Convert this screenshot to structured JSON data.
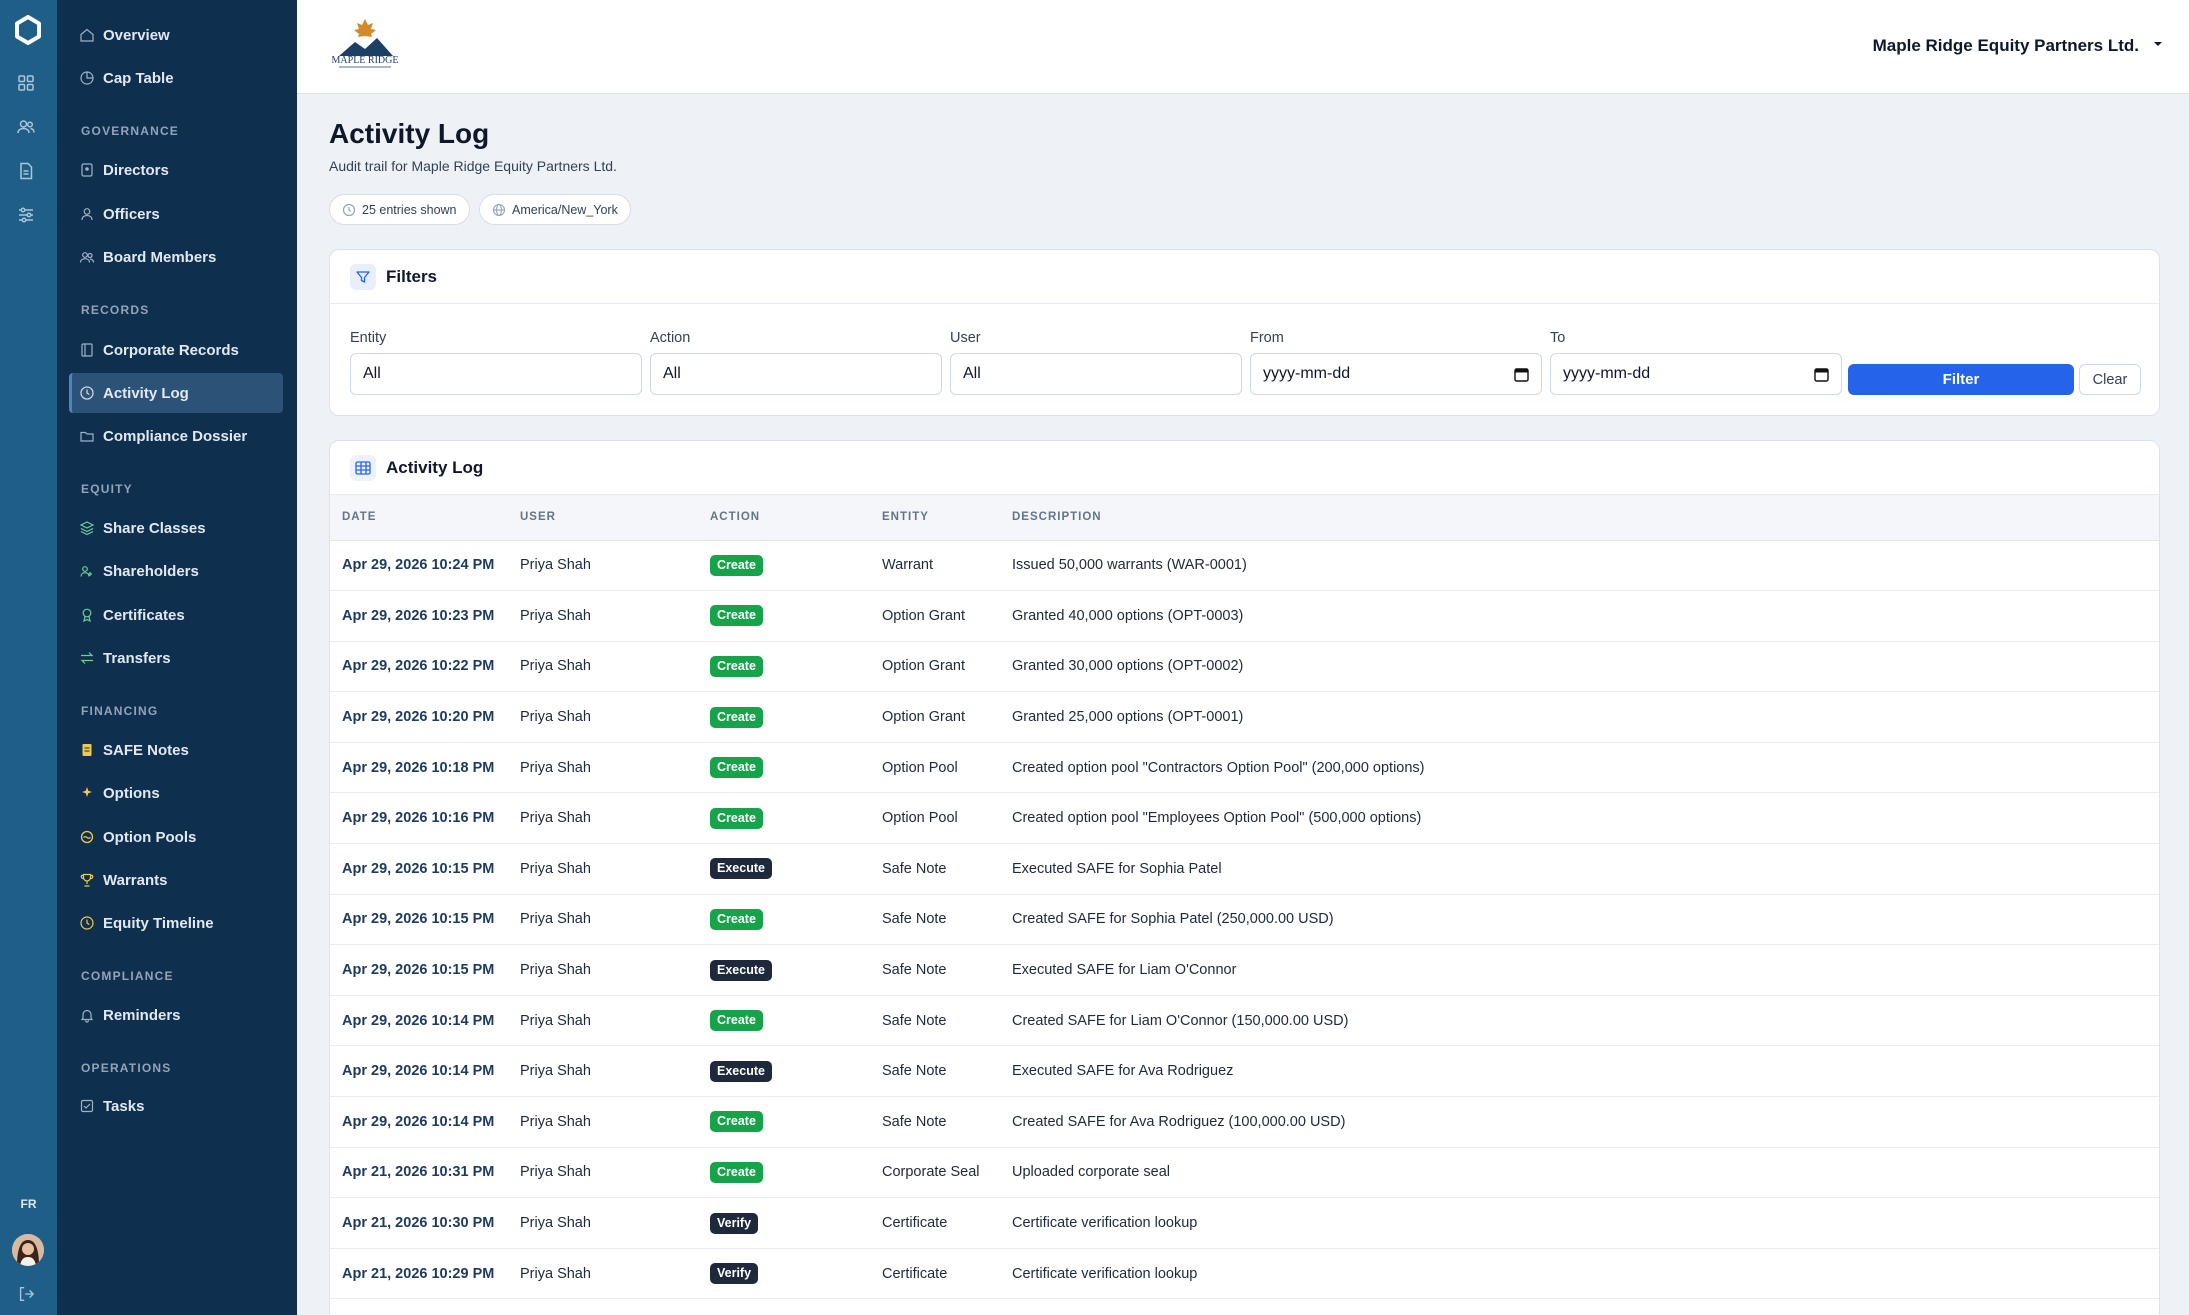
{
  "sidebar": {
    "groups": [
      {
        "heading": "",
        "items": [
          {
            "label": "Overview",
            "icon": "home-icon"
          },
          {
            "label": "Cap Table",
            "icon": "pie-icon"
          }
        ]
      },
      {
        "heading": "GOVERNANCE",
        "items": [
          {
            "label": "Directors",
            "icon": "id-badge-icon"
          },
          {
            "label": "Officers",
            "icon": "user-icon"
          },
          {
            "label": "Board Members",
            "icon": "users-icon"
          }
        ]
      },
      {
        "heading": "RECORDS",
        "items": [
          {
            "label": "Corporate Records",
            "icon": "book-icon"
          },
          {
            "label": "Activity Log",
            "icon": "clock-icon",
            "active": true
          },
          {
            "label": "Compliance Dossier",
            "icon": "folder-icon"
          }
        ]
      },
      {
        "heading": "EQUITY",
        "items": [
          {
            "label": "Share Classes",
            "icon": "layers-icon"
          },
          {
            "label": "Shareholders",
            "icon": "shareholders-icon"
          },
          {
            "label": "Certificates",
            "icon": "award-icon"
          },
          {
            "label": "Transfers",
            "icon": "transfer-icon"
          }
        ]
      },
      {
        "heading": "FINANCING",
        "items": [
          {
            "label": "SAFE Notes",
            "icon": "note-icon"
          },
          {
            "label": "Options",
            "icon": "sparkle-icon"
          },
          {
            "label": "Option Pools",
            "icon": "pool-icon"
          },
          {
            "label": "Warrants",
            "icon": "trophy-icon"
          },
          {
            "label": "Equity Timeline",
            "icon": "timeline-icon"
          }
        ]
      },
      {
        "heading": "COMPLIANCE",
        "items": [
          {
            "label": "Reminders",
            "icon": "bell-icon"
          }
        ]
      },
      {
        "heading": "OPERATIONS",
        "items": [
          {
            "label": "Tasks",
            "icon": "checkbox-icon"
          }
        ]
      }
    ],
    "language": "FR"
  },
  "header": {
    "company_name": "Maple Ridge Equity Partners Ltd.",
    "logo_text": "MAPLE RIDGE"
  },
  "page": {
    "title": "Activity Log",
    "subtitle": "Audit trail for Maple Ridge Equity Partners Ltd.",
    "entries_chip": "25 entries shown",
    "timezone_chip": "America/New_York"
  },
  "filters": {
    "title": "Filters",
    "entity_label": "Entity",
    "entity_value": "All",
    "action_label": "Action",
    "action_value": "All",
    "user_label": "User",
    "user_value": "All",
    "from_label": "From",
    "from_placeholder": "yyyy-mm-dd",
    "to_label": "To",
    "to_placeholder": "yyyy-mm-dd",
    "filter_button": "Filter",
    "clear_button": "Clear"
  },
  "log": {
    "title": "Activity Log",
    "columns": [
      "DATE",
      "USER",
      "ACTION",
      "ENTITY",
      "DESCRIPTION"
    ],
    "rows": [
      {
        "date": "Apr 29, 2026 10:24 PM",
        "user": "Priya Shah",
        "action": "Create",
        "entity": "Warrant",
        "description": "Issued 50,000 warrants (WAR-0001)"
      },
      {
        "date": "Apr 29, 2026 10:23 PM",
        "user": "Priya Shah",
        "action": "Create",
        "entity": "Option Grant",
        "description": "Granted 40,000 options (OPT-0003)"
      },
      {
        "date": "Apr 29, 2026 10:22 PM",
        "user": "Priya Shah",
        "action": "Create",
        "entity": "Option Grant",
        "description": "Granted 30,000 options (OPT-0002)"
      },
      {
        "date": "Apr 29, 2026 10:20 PM",
        "user": "Priya Shah",
        "action": "Create",
        "entity": "Option Grant",
        "description": "Granted 25,000 options (OPT-0001)"
      },
      {
        "date": "Apr 29, 2026 10:18 PM",
        "user": "Priya Shah",
        "action": "Create",
        "entity": "Option Pool",
        "description": "Created option pool \"Contractors Option Pool\" (200,000 options)"
      },
      {
        "date": "Apr 29, 2026 10:16 PM",
        "user": "Priya Shah",
        "action": "Create",
        "entity": "Option Pool",
        "description": "Created option pool \"Employees Option Pool\" (500,000 options)"
      },
      {
        "date": "Apr 29, 2026 10:15 PM",
        "user": "Priya Shah",
        "action": "Execute",
        "entity": "Safe Note",
        "description": "Executed SAFE for Sophia Patel"
      },
      {
        "date": "Apr 29, 2026 10:15 PM",
        "user": "Priya Shah",
        "action": "Create",
        "entity": "Safe Note",
        "description": "Created SAFE for Sophia Patel (250,000.00 USD)"
      },
      {
        "date": "Apr 29, 2026 10:15 PM",
        "user": "Priya Shah",
        "action": "Execute",
        "entity": "Safe Note",
        "description": "Executed SAFE for Liam O'Connor"
      },
      {
        "date": "Apr 29, 2026 10:14 PM",
        "user": "Priya Shah",
        "action": "Create",
        "entity": "Safe Note",
        "description": "Created SAFE for Liam O'Connor (150,000.00 USD)"
      },
      {
        "date": "Apr 29, 2026 10:14 PM",
        "user": "Priya Shah",
        "action": "Execute",
        "entity": "Safe Note",
        "description": "Executed SAFE for Ava Rodriguez"
      },
      {
        "date": "Apr 29, 2026 10:14 PM",
        "user": "Priya Shah",
        "action": "Create",
        "entity": "Safe Note",
        "description": "Created SAFE for Ava Rodriguez (100,000.00 USD)"
      },
      {
        "date": "Apr 21, 2026 10:31 PM",
        "user": "Priya Shah",
        "action": "Create",
        "entity": "Corporate Seal",
        "description": "Uploaded corporate seal"
      },
      {
        "date": "Apr 21, 2026 10:30 PM",
        "user": "Priya Shah",
        "action": "Verify",
        "entity": "Certificate",
        "description": "Certificate verification lookup"
      },
      {
        "date": "Apr 21, 2026 10:29 PM",
        "user": "Priya Shah",
        "action": "Verify",
        "entity": "Certificate",
        "description": "Certificate verification lookup"
      }
    ]
  },
  "colors": {
    "rail": "#1f5e86",
    "nav": "#0f2f4f",
    "primary": "#2563eb",
    "badge_create": "#16a34a",
    "badge_dark": "#1e293b"
  }
}
